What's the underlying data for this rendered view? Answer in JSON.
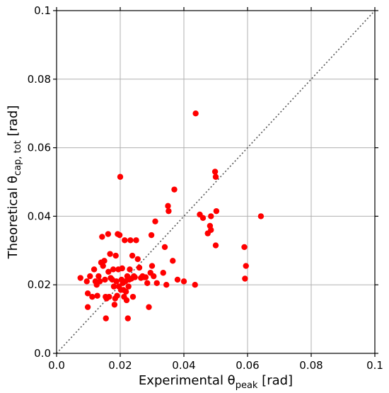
{
  "chart_data": {
    "type": "scatter",
    "xlabel": {
      "main": "Experimental θ",
      "sub": "peak",
      "unit": " [rad]"
    },
    "ylabel": {
      "main": "Theoretical θ",
      "sub": "cap, tot",
      "unit": " [rad]"
    },
    "xlim": [
      0,
      0.1
    ],
    "ylim": [
      0,
      0.1
    ],
    "xticks": [
      0,
      0.02,
      0.04,
      0.06,
      0.08,
      0.1
    ],
    "xtick_labels": [
      "0.0",
      "0.02",
      "0.04",
      "0.06",
      "0.08",
      "0.1"
    ],
    "yticks": [
      0,
      0.02,
      0.04,
      0.06,
      0.08,
      0.1
    ],
    "ytick_labels": [
      "0.0",
      "0.02",
      "0.04",
      "0.06",
      "0.08",
      "0.1"
    ],
    "grid": true,
    "reference_line": {
      "style": "dotted",
      "from": [
        0,
        0
      ],
      "to": [
        0.1,
        0.1
      ],
      "color": "#555555"
    },
    "marker_color": "#ff0000",
    "points": [
      [
        0.0075,
        0.022
      ],
      [
        0.0095,
        0.021
      ],
      [
        0.0098,
        0.0175
      ],
      [
        0.0098,
        0.0135
      ],
      [
        0.0105,
        0.0225
      ],
      [
        0.0112,
        0.0165
      ],
      [
        0.0118,
        0.0245
      ],
      [
        0.0122,
        0.021
      ],
      [
        0.0126,
        0.02
      ],
      [
        0.0128,
        0.0168
      ],
      [
        0.0132,
        0.0225
      ],
      [
        0.0136,
        0.021
      ],
      [
        0.014,
        0.0265
      ],
      [
        0.0143,
        0.034
      ],
      [
        0.0146,
        0.0255
      ],
      [
        0.015,
        0.027
      ],
      [
        0.0152,
        0.0215
      ],
      [
        0.0154,
        0.0165
      ],
      [
        0.0155,
        0.0102
      ],
      [
        0.0157,
        0.016
      ],
      [
        0.0162,
        0.0348
      ],
      [
        0.0163,
        0.0238
      ],
      [
        0.0165,
        0.0165
      ],
      [
        0.0168,
        0.029
      ],
      [
        0.017,
        0.022
      ],
      [
        0.0175,
        0.0215
      ],
      [
        0.0178,
        0.0245
      ],
      [
        0.018,
        0.0195
      ],
      [
        0.0182,
        0.0142
      ],
      [
        0.0184,
        0.016
      ],
      [
        0.0186,
        0.0285
      ],
      [
        0.0188,
        0.021
      ],
      [
        0.019,
        0.0168
      ],
      [
        0.0192,
        0.0348
      ],
      [
        0.0194,
        0.0245
      ],
      [
        0.0196,
        0.0195
      ],
      [
        0.0198,
        0.0345
      ],
      [
        0.02,
        0.0515
      ],
      [
        0.0202,
        0.0185
      ],
      [
        0.0204,
        0.0215
      ],
      [
        0.0206,
        0.0248
      ],
      [
        0.0208,
        0.0205
      ],
      [
        0.021,
        0.0185
      ],
      [
        0.0212,
        0.0165
      ],
      [
        0.0214,
        0.033
      ],
      [
        0.0216,
        0.021
      ],
      [
        0.0218,
        0.018
      ],
      [
        0.022,
        0.0155
      ],
      [
        0.0222,
        0.0225
      ],
      [
        0.0224,
        0.0102
      ],
      [
        0.0226,
        0.0195
      ],
      [
        0.0228,
        0.0215
      ],
      [
        0.023,
        0.0245
      ],
      [
        0.0232,
        0.033
      ],
      [
        0.0235,
        0.0218
      ],
      [
        0.0238,
        0.0285
      ],
      [
        0.024,
        0.0165
      ],
      [
        0.0243,
        0.0225
      ],
      [
        0.0246,
        0.0222
      ],
      [
        0.025,
        0.033
      ],
      [
        0.0255,
        0.0275
      ],
      [
        0.026,
        0.025
      ],
      [
        0.0265,
        0.022
      ],
      [
        0.027,
        0.0225
      ],
      [
        0.0275,
        0.0222
      ],
      [
        0.028,
        0.0222
      ],
      [
        0.0285,
        0.0205
      ],
      [
        0.029,
        0.0135
      ],
      [
        0.0295,
        0.0235
      ],
      [
        0.0298,
        0.0345
      ],
      [
        0.03,
        0.0255
      ],
      [
        0.0305,
        0.0225
      ],
      [
        0.031,
        0.0385
      ],
      [
        0.0315,
        0.0205
      ],
      [
        0.0335,
        0.0235
      ],
      [
        0.034,
        0.031
      ],
      [
        0.0345,
        0.02
      ],
      [
        0.035,
        0.043
      ],
      [
        0.0352,
        0.0415
      ],
      [
        0.0365,
        0.027
      ],
      [
        0.037,
        0.0478
      ],
      [
        0.038,
        0.0215
      ],
      [
        0.04,
        0.021
      ],
      [
        0.0435,
        0.02
      ],
      [
        0.0437,
        0.07
      ],
      [
        0.045,
        0.0405
      ],
      [
        0.046,
        0.0395
      ],
      [
        0.0475,
        0.035
      ],
      [
        0.0482,
        0.0372
      ],
      [
        0.0485,
        0.036
      ],
      [
        0.0485,
        0.04
      ],
      [
        0.0498,
        0.053
      ],
      [
        0.05,
        0.0515
      ],
      [
        0.0502,
        0.0415
      ],
      [
        0.05,
        0.0315
      ],
      [
        0.059,
        0.031
      ],
      [
        0.0592,
        0.0218
      ],
      [
        0.0595,
        0.0255
      ],
      [
        0.0642,
        0.04
      ]
    ]
  }
}
